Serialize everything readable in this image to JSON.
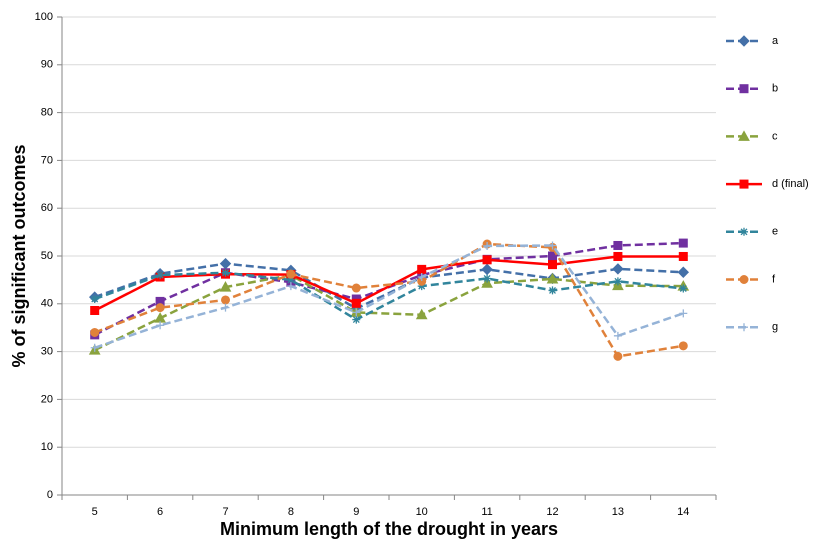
{
  "chart_data": {
    "type": "line",
    "xlabel": "Minimum length of the drought in years",
    "ylabel": "% of significant outcomes",
    "categories": [
      "5",
      "6",
      "7",
      "8",
      "9",
      "10",
      "11",
      "12",
      "13",
      "14"
    ],
    "ylim": [
      0,
      100
    ],
    "yticks": [
      0,
      10,
      20,
      30,
      40,
      50,
      60,
      70,
      80,
      90,
      100
    ],
    "grid": true,
    "series": [
      {
        "name": "a",
        "color": "#4470a8",
        "marker": "diamond",
        "dashed": true,
        "values": [
          41.4,
          46.3,
          48.4,
          47,
          39,
          45.5,
          47.2,
          45.3,
          47.3,
          46.6
        ]
      },
      {
        "name": "b",
        "color": "#7030a0",
        "marker": "square",
        "dashed": true,
        "values": [
          33.5,
          40.5,
          46.5,
          44.5,
          41,
          46,
          49.3,
          50,
          52.2,
          52.7
        ]
      },
      {
        "name": "c",
        "color": "#8aa33e",
        "marker": "triangle",
        "dashed": true,
        "values": [
          30.3,
          37,
          43.5,
          46,
          38.2,
          37.7,
          44.3,
          45.2,
          43.8,
          43.7
        ]
      },
      {
        "name": "d (final)",
        "color": "#ff0000",
        "marker": "square",
        "dashed": false,
        "values": [
          38.6,
          45.6,
          46.2,
          46.1,
          40.1,
          47.2,
          49.2,
          48.2,
          49.9,
          49.9
        ]
      },
      {
        "name": "e",
        "color": "#31859c",
        "marker": "star",
        "dashed": true,
        "values": [
          41,
          46,
          46.5,
          45,
          36.7,
          43.7,
          45.3,
          42.8,
          44.7,
          43.2
        ]
      },
      {
        "name": "f",
        "color": "#e0813a",
        "marker": "circle",
        "dashed": true,
        "values": [
          34,
          39.2,
          40.8,
          46.2,
          43.3,
          44.7,
          52.5,
          51.8,
          29,
          31.2
        ]
      },
      {
        "name": "g",
        "color": "#95b3d7",
        "marker": "plus",
        "dashed": true,
        "values": [
          30.8,
          35.5,
          39.2,
          43.7,
          38.2,
          45.6,
          52.1,
          52.2,
          33.3,
          38
        ]
      }
    ]
  }
}
